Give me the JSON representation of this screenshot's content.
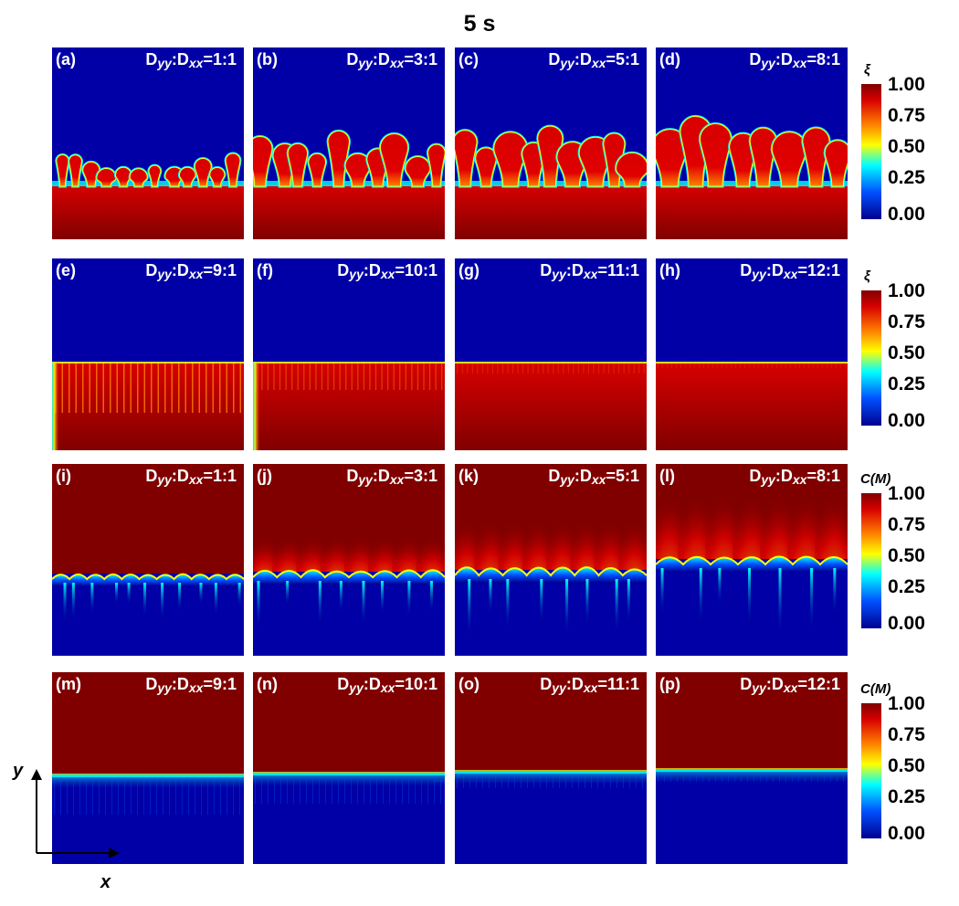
{
  "figure": {
    "title": "5 s",
    "axes": {
      "x_label": "x",
      "y_label": "y"
    },
    "colorbars": [
      {
        "title": "ξ",
        "ticks": [
          "1.00",
          "0.75",
          "0.50",
          "0.25",
          "0.00"
        ]
      },
      {
        "title": "ξ",
        "ticks": [
          "1.00",
          "0.75",
          "0.50",
          "0.25",
          "0.00"
        ]
      },
      {
        "title": "C(M)",
        "ticks": [
          "1.00",
          "0.75",
          "0.50",
          "0.25",
          "0.00"
        ]
      },
      {
        "title": "C(M)",
        "ticks": [
          "1.00",
          "0.75",
          "0.50",
          "0.25",
          "0.00"
        ]
      }
    ],
    "rows": [
      {
        "variable": "ξ",
        "panels": [
          {
            "label": "(a)",
            "ratio_value": "1:1"
          },
          {
            "label": "(b)",
            "ratio_value": "3:1"
          },
          {
            "label": "(c)",
            "ratio_value": "5:1"
          },
          {
            "label": "(d)",
            "ratio_value": "8:1"
          }
        ]
      },
      {
        "variable": "ξ",
        "panels": [
          {
            "label": "(e)",
            "ratio_value": "9:1"
          },
          {
            "label": "(f)",
            "ratio_value": "10:1"
          },
          {
            "label": "(g)",
            "ratio_value": "11:1"
          },
          {
            "label": "(h)",
            "ratio_value": "12:1"
          }
        ]
      },
      {
        "variable": "C(M)",
        "panels": [
          {
            "label": "(i)",
            "ratio_value": "1:1"
          },
          {
            "label": "(j)",
            "ratio_value": "3:1"
          },
          {
            "label": "(k)",
            "ratio_value": "5:1"
          },
          {
            "label": "(l)",
            "ratio_value": "8:1"
          }
        ]
      },
      {
        "variable": "C(M)",
        "panels": [
          {
            "label": "(m)",
            "ratio_value": "9:1"
          },
          {
            "label": "(n)",
            "ratio_value": "10:1"
          },
          {
            "label": "(o)",
            "ratio_value": "11:1"
          },
          {
            "label": "(p)",
            "ratio_value": "12:1"
          }
        ]
      }
    ],
    "ratio_text": {
      "d": "D",
      "yy": "yy",
      "colon": ":",
      "xx": "xx",
      "equals": "="
    },
    "colors": {
      "dark_red": "#800000",
      "red": "#d80000",
      "orange": "#ff8000",
      "yellow": "#ffff00",
      "cyan": "#00ffff",
      "blue": "#0050ff",
      "dark_blue": "#00008f",
      "panel_blue": "#0000a6"
    }
  }
}
